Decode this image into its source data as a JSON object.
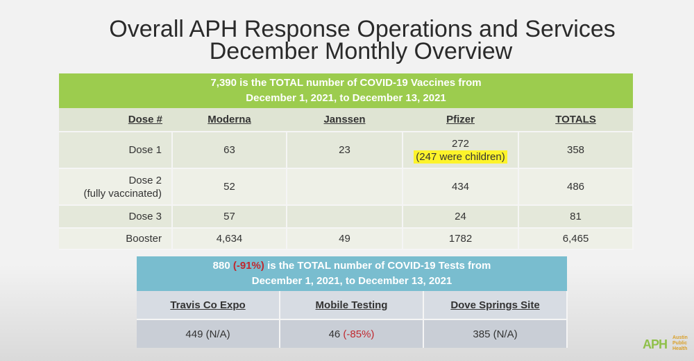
{
  "title": {
    "line1": "Overall APH Response Operations and Services",
    "line2": "December Monthly Overview"
  },
  "vaccines": {
    "header_line1": "7,390 is the TOTAL number of COVID-19 Vaccines from",
    "header_line2": "December 1, 2021, to December 13, 2021",
    "columns": [
      "Dose #",
      "Moderna",
      "Janssen",
      "Pfizer",
      "TOTALS"
    ],
    "rows": [
      {
        "dose": "Dose 1",
        "dose_note": "",
        "moderna": "63",
        "janssen": "23",
        "pfizer": "272",
        "pfizer_note": "(247 were children)",
        "total": "358"
      },
      {
        "dose": "Dose 2",
        "dose_note": "(fully vaccinated)",
        "moderna": "52",
        "janssen": "",
        "pfizer": "434",
        "pfizer_note": "",
        "total": "486"
      },
      {
        "dose": "Dose 3",
        "dose_note": "",
        "moderna": "57",
        "janssen": "",
        "pfizer": "24",
        "pfizer_note": "",
        "total": "81"
      },
      {
        "dose": "Booster",
        "dose_note": "",
        "moderna": "4,634",
        "janssen": "49",
        "pfizer": "1782",
        "pfizer_note": "",
        "total": "6,465"
      }
    ]
  },
  "tests": {
    "header_count": "880",
    "header_change": "(-91%)",
    "header_rest": "is the TOTAL number of COVID-19 Tests from",
    "header_line2": "December 1, 2021, to December 13, 2021",
    "columns": [
      "Travis Co Expo",
      "Mobile Testing",
      "Dove Springs Site"
    ],
    "values": [
      {
        "count": "449",
        "change": "(N/A)",
        "change_highlight": false
      },
      {
        "count": "46",
        "change": "(-85%)",
        "change_highlight": true
      },
      {
        "count": "385",
        "change": "(N/A)",
        "change_highlight": false
      }
    ]
  },
  "logo": {
    "abbr": "APH",
    "line1": "Austin",
    "line2": "Public",
    "line3": "Health"
  },
  "colors": {
    "vaccine_header": "#9ccc4e",
    "tests_header": "#79bdcf",
    "highlight": "#fdf32b",
    "negative": "#c0282e"
  }
}
